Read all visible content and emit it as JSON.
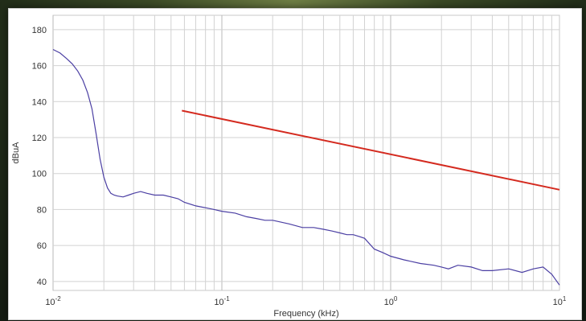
{
  "chart_data": {
    "type": "line",
    "xlabel": "Frequency (kHz)",
    "ylabel": "dBuA",
    "xscale": "log",
    "xlim": [
      0.01,
      10
    ],
    "ylim": [
      35,
      188
    ],
    "grid": true,
    "x_ticks": [
      {
        "value": 0.01,
        "base": "10",
        "exp": "-2"
      },
      {
        "value": 0.1,
        "base": "10",
        "exp": "-1"
      },
      {
        "value": 1,
        "base": "10",
        "exp": "0"
      },
      {
        "value": 10,
        "base": "10",
        "exp": "1"
      }
    ],
    "y_ticks": [
      "40",
      "60",
      "80",
      "100",
      "120",
      "140",
      "160",
      "180"
    ],
    "series": [
      {
        "color": "#4b3fa3",
        "x": [
          0.01,
          0.011,
          0.012,
          0.013,
          0.014,
          0.015,
          0.016,
          0.017,
          0.018,
          0.019,
          0.02,
          0.021,
          0.022,
          0.023,
          0.024,
          0.026,
          0.028,
          0.03,
          0.033,
          0.036,
          0.04,
          0.045,
          0.05,
          0.055,
          0.06,
          0.07,
          0.08,
          0.09,
          0.1,
          0.12,
          0.14,
          0.16,
          0.18,
          0.2,
          0.25,
          0.3,
          0.35,
          0.4,
          0.45,
          0.5,
          0.55,
          0.6,
          0.65,
          0.7,
          0.8,
          0.9,
          1.0,
          1.2,
          1.5,
          1.8,
          2.0,
          2.2,
          2.5,
          3.0,
          3.5,
          4.0,
          5.0,
          6.0,
          7.0,
          8.0,
          9.0,
          10.0
        ],
        "y": [
          169,
          167,
          164,
          161,
          157,
          152,
          145,
          136,
          122,
          108,
          98,
          92,
          89,
          88,
          87.5,
          87,
          88,
          89,
          90,
          89,
          88,
          88,
          87,
          86,
          84,
          82,
          81,
          80,
          79,
          78,
          76,
          75,
          74,
          74,
          72,
          70,
          70,
          69,
          68,
          67,
          66,
          66,
          65,
          64,
          58,
          56,
          54,
          52,
          50,
          49,
          48,
          47,
          49,
          48,
          46,
          46,
          47,
          45,
          47,
          48,
          44,
          38
        ]
      },
      {
        "color": "#d42a1f",
        "x": [
          0.058,
          10
        ],
        "y": [
          135,
          91
        ]
      }
    ]
  }
}
